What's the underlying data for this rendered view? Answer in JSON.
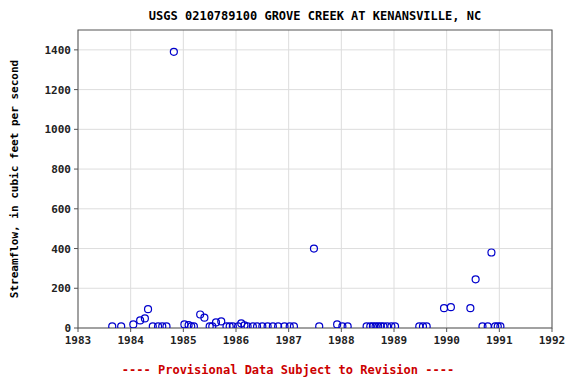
{
  "chart_data": {
    "type": "scatter",
    "title": "USGS 0210789100 GROVE CREEK AT KENANSVILLE, NC",
    "ylabel": "Streamflow, in cubic feet per second",
    "annotations": [
      {
        "text": "---- Provisional Data Subject to Revision ----",
        "color": "#cc0000"
      }
    ],
    "color": "#0000CC",
    "marker": "open-circle",
    "grid": true,
    "xlim": [
      1983,
      1992
    ],
    "xticks": [
      1983,
      1984,
      1985,
      1986,
      1987,
      1988,
      1989,
      1990,
      1991,
      1992
    ],
    "ylim": [
      0,
      1500
    ],
    "yticks": [
      0,
      200,
      400,
      600,
      800,
      1000,
      1200,
      1400
    ],
    "x": [
      1983.65,
      1983.82,
      1984.05,
      1984.18,
      1984.27,
      1984.33,
      1984.42,
      1984.52,
      1984.6,
      1984.68,
      1984.82,
      1985.02,
      1985.1,
      1985.15,
      1985.2,
      1985.32,
      1985.4,
      1985.5,
      1985.55,
      1985.62,
      1985.72,
      1985.82,
      1985.88,
      1985.94,
      1986.04,
      1986.1,
      1986.16,
      1986.22,
      1986.32,
      1986.4,
      1986.5,
      1986.6,
      1986.7,
      1986.8,
      1986.92,
      1987.02,
      1987.1,
      1987.48,
      1987.58,
      1987.92,
      1988.02,
      1988.12,
      1988.48,
      1988.55,
      1988.6,
      1988.65,
      1988.7,
      1988.75,
      1988.8,
      1988.87,
      1988.95,
      1989.02,
      1989.48,
      1989.55,
      1989.62,
      1989.95,
      1990.08,
      1990.45,
      1990.55,
      1990.68,
      1990.78,
      1990.85,
      1990.92,
      1990.97,
      1991.02
    ],
    "values": [
      8,
      8,
      18,
      38,
      48,
      95,
      8,
      8,
      8,
      8,
      1390,
      18,
      14,
      8,
      8,
      68,
      52,
      8,
      8,
      28,
      33,
      8,
      8,
      8,
      8,
      23,
      13,
      8,
      8,
      8,
      8,
      8,
      8,
      8,
      8,
      8,
      8,
      400,
      8,
      18,
      8,
      8,
      8,
      8,
      8,
      8,
      8,
      8,
      8,
      8,
      8,
      8,
      8,
      8,
      8,
      100,
      105,
      100,
      245,
      8,
      8,
      380,
      8,
      8,
      8
    ]
  }
}
